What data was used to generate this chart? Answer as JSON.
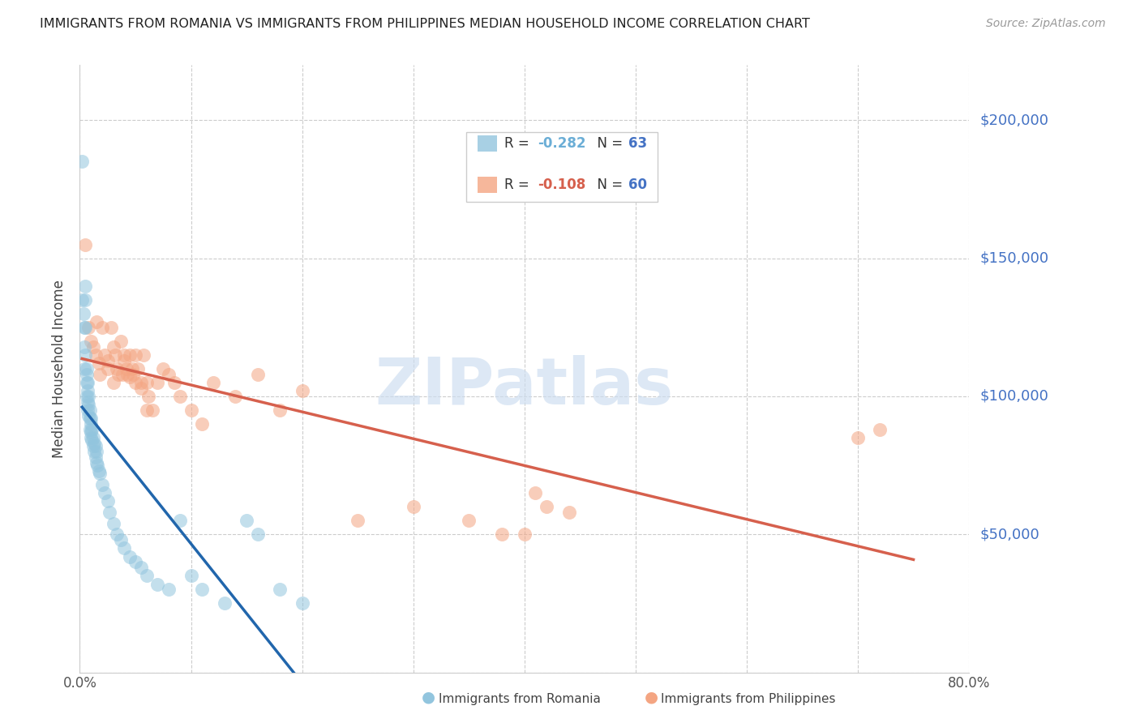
{
  "title": "IMMIGRANTS FROM ROMANIA VS IMMIGRANTS FROM PHILIPPINES MEDIAN HOUSEHOLD INCOME CORRELATION CHART",
  "source": "Source: ZipAtlas.com",
  "ylabel": "Median Household Income",
  "ylim": [
    0,
    220000
  ],
  "xlim": [
    0.0,
    0.8
  ],
  "romania_color": "#92c5de",
  "philippines_color": "#f4a582",
  "romania_line_color": "#2166ac",
  "philippines_line_color": "#d6604d",
  "romania_R": -0.282,
  "romania_N": 63,
  "philippines_R": -0.108,
  "philippines_N": 60,
  "watermark": "ZIPatlas",
  "ytick_color": "#4472c4",
  "legend_R_color_romania": "#6baed6",
  "legend_R_color_philippines": "#f4a582",
  "legend_N_color": "#4472c4"
}
